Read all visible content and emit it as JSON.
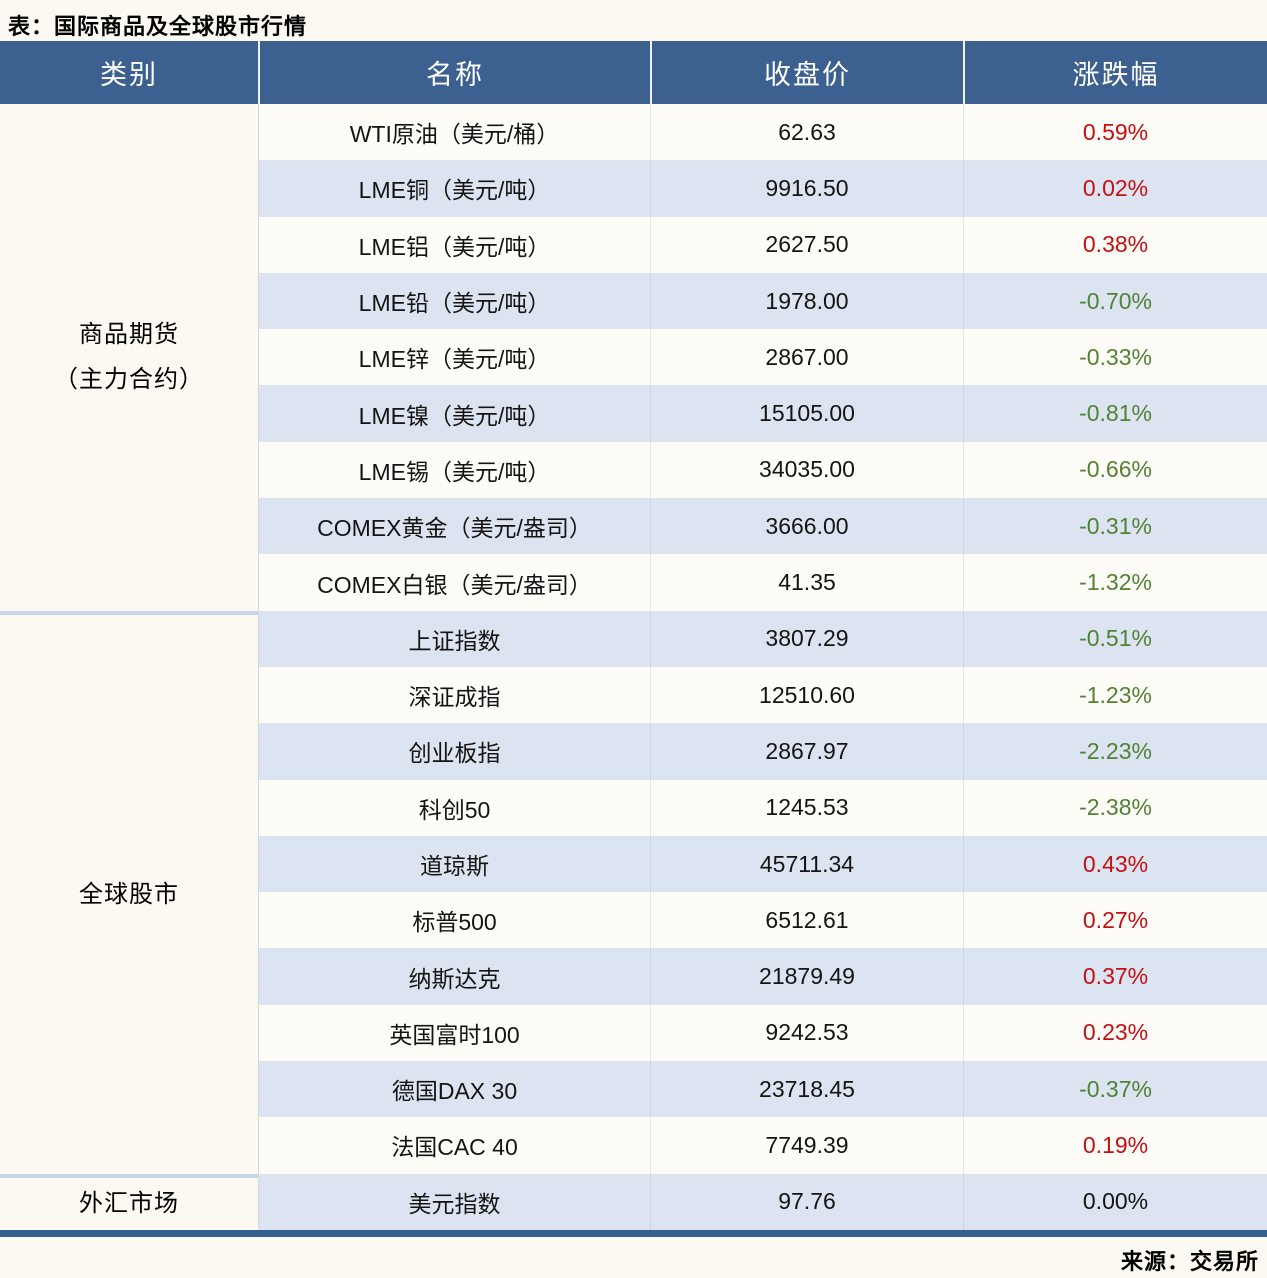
{
  "title": "表：国际商品及全球股市行情",
  "source": "来源：交易所",
  "colors": {
    "header_bg": "#3c6190",
    "row_plain": "#fdfcf6",
    "row_alt": "#dbe4f0",
    "page_bg": "#fbf9f1",
    "up": "#c50f12",
    "down": "#538135",
    "flat": "#141414",
    "divider": "#c7d6e9",
    "bottom_border": "#33608f"
  },
  "table": {
    "headers": [
      "类别",
      "名称",
      "收盘价",
      "涨跌幅"
    ],
    "groups": [
      {
        "category": "商品期货（主力合约）",
        "category_lines": [
          "商品期货",
          "（主力合约）"
        ],
        "rows": [
          {
            "name": "WTI原油（美元/桶）",
            "close": "62.63",
            "change": "0.59%",
            "direction": "up"
          },
          {
            "name": "LME铜（美元/吨）",
            "close": "9916.50",
            "change": "0.02%",
            "direction": "up"
          },
          {
            "name": "LME铝（美元/吨）",
            "close": "2627.50",
            "change": "0.38%",
            "direction": "up"
          },
          {
            "name": "LME铅（美元/吨）",
            "close": "1978.00",
            "change": "-0.70%",
            "direction": "down"
          },
          {
            "name": "LME锌（美元/吨）",
            "close": "2867.00",
            "change": "-0.33%",
            "direction": "down"
          },
          {
            "name": "LME镍（美元/吨）",
            "close": "15105.00",
            "change": "-0.81%",
            "direction": "down"
          },
          {
            "name": "LME锡（美元/吨）",
            "close": "34035.00",
            "change": "-0.66%",
            "direction": "down"
          },
          {
            "name": "COMEX黄金（美元/盎司）",
            "close": "3666.00",
            "change": "-0.31%",
            "direction": "down"
          },
          {
            "name": "COMEX白银（美元/盎司）",
            "close": "41.35",
            "change": "-1.32%",
            "direction": "down"
          }
        ]
      },
      {
        "category": "全球股市",
        "category_lines": [
          "全球股市"
        ],
        "rows": [
          {
            "name": "上证指数",
            "close": "3807.29",
            "change": "-0.51%",
            "direction": "down"
          },
          {
            "name": "深证成指",
            "close": "12510.60",
            "change": "-1.23%",
            "direction": "down"
          },
          {
            "name": "创业板指",
            "close": "2867.97",
            "change": "-2.23%",
            "direction": "down"
          },
          {
            "name": "科创50",
            "close": "1245.53",
            "change": "-2.38%",
            "direction": "down"
          },
          {
            "name": "道琼斯",
            "close": "45711.34",
            "change": "0.43%",
            "direction": "up"
          },
          {
            "name": "标普500",
            "close": "6512.61",
            "change": "0.27%",
            "direction": "up"
          },
          {
            "name": "纳斯达克",
            "close": "21879.49",
            "change": "0.37%",
            "direction": "up"
          },
          {
            "name": "英国富时100",
            "close": "9242.53",
            "change": "0.23%",
            "direction": "up"
          },
          {
            "name": "德国DAX 30",
            "close": "23718.45",
            "change": "-0.37%",
            "direction": "down"
          },
          {
            "name": "法国CAC 40",
            "close": "7749.39",
            "change": "0.19%",
            "direction": "up"
          }
        ]
      },
      {
        "category": "外汇市场",
        "category_lines": [
          "外汇市场"
        ],
        "rows": [
          {
            "name": "美元指数",
            "close": "97.76",
            "change": "0.00%",
            "direction": "flat"
          }
        ]
      }
    ]
  },
  "chart_data": {
    "type": "table",
    "title": "表：国际商品及全球股市行情",
    "columns": [
      "类别",
      "名称",
      "收盘价",
      "涨跌幅"
    ],
    "rows": [
      [
        "商品期货（主力合约）",
        "WTI原油（美元/桶）",
        62.63,
        "0.59%"
      ],
      [
        "商品期货（主力合约）",
        "LME铜（美元/吨）",
        9916.5,
        "0.02%"
      ],
      [
        "商品期货（主力合约）",
        "LME铝（美元/吨）",
        2627.5,
        "0.38%"
      ],
      [
        "商品期货（主力合约）",
        "LME铅（美元/吨）",
        1978.0,
        "-0.70%"
      ],
      [
        "商品期货（主力合约）",
        "LME锌（美元/吨）",
        2867.0,
        "-0.33%"
      ],
      [
        "商品期货（主力合约）",
        "LME镍（美元/吨）",
        15105.0,
        "-0.81%"
      ],
      [
        "商品期货（主力合约）",
        "LME锡（美元/吨）",
        34035.0,
        "-0.66%"
      ],
      [
        "商品期货（主力合约）",
        "COMEX黄金（美元/盎司）",
        3666.0,
        "-0.31%"
      ],
      [
        "商品期货（主力合约）",
        "COMEX白银（美元/盎司）",
        41.35,
        "-1.32%"
      ],
      [
        "全球股市",
        "上证指数",
        3807.29,
        "-0.51%"
      ],
      [
        "全球股市",
        "深证成指",
        12510.6,
        "-1.23%"
      ],
      [
        "全球股市",
        "创业板指",
        2867.97,
        "-2.23%"
      ],
      [
        "全球股市",
        "科创50",
        1245.53,
        "-2.38%"
      ],
      [
        "全球股市",
        "道琼斯",
        45711.34,
        "0.43%"
      ],
      [
        "全球股市",
        "标普500",
        6512.61,
        "0.27%"
      ],
      [
        "全球股市",
        "纳斯达克",
        21879.49,
        "0.37%"
      ],
      [
        "全球股市",
        "英国富时100",
        9242.53,
        "0.23%"
      ],
      [
        "全球股市",
        "德国DAX 30",
        23718.45,
        "-0.37%"
      ],
      [
        "全球股市",
        "法国CAC 40",
        7749.39,
        "0.19%"
      ],
      [
        "外汇市场",
        "美元指数",
        97.76,
        "0.00%"
      ]
    ],
    "source": "来源：交易所",
    "notes": "positive changes shown in red, negative in green, zero in black"
  }
}
